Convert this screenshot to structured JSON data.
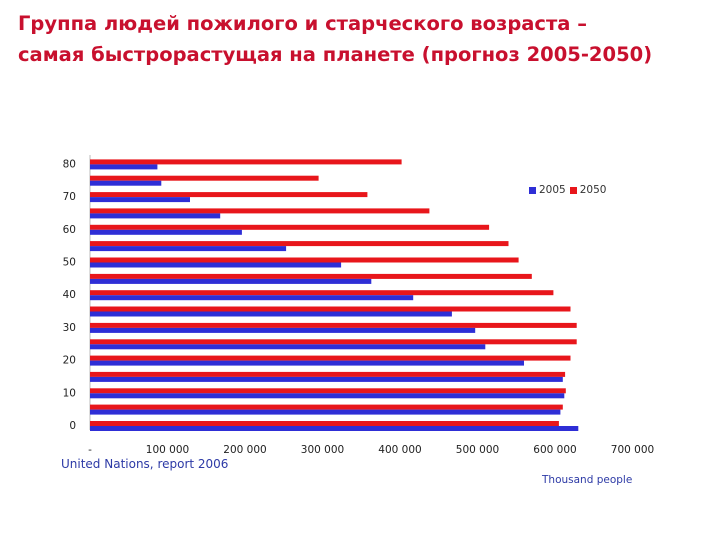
{
  "title_lines": [
    "Группа людей пожилого и старческого возраста –",
    "самая быстрорастущая на планете (прогноз 2005-2050)"
  ],
  "source": "United Nations, report 2006",
  "unit_label": "Thousand people",
  "colors": {
    "series_2005": "#2e2ed6",
    "series_2050": "#e8161b"
  },
  "chart_data": {
    "type": "bar",
    "orientation": "horizontal",
    "title": "Группа людей пожилого и старческого возраста – самая быстрорастущая на планете (прогноз 2005-2050)",
    "xlabel": "Thousand people",
    "ylabel": "",
    "xlim": [
      0,
      700000
    ],
    "ylim": [
      0,
      80
    ],
    "x_tick_labels": [
      "-",
      "100 000",
      "200 000",
      "300 000",
      "400 000",
      "500 000",
      "600 000",
      "700 000"
    ],
    "y_tick_labels": [
      "0",
      "10",
      "20",
      "30",
      "40",
      "50",
      "60",
      "70",
      "80"
    ],
    "legend_position": "top-right",
    "grid": false,
    "categories": [
      "0",
      "5",
      "10",
      "15",
      "20",
      "25",
      "30",
      "35",
      "40",
      "45",
      "50",
      "55",
      "60",
      "65",
      "70",
      "75",
      "80"
    ],
    "series": [
      {
        "name": "2005",
        "values": [
          630000,
          607000,
          612000,
          610000,
          560000,
          510000,
          497000,
          467000,
          417000,
          363000,
          324000,
          253000,
          196000,
          168000,
          129000,
          92000,
          87000
        ]
      },
      {
        "name": "2050",
        "values": [
          605000,
          610000,
          614000,
          613000,
          620000,
          628000,
          628000,
          620000,
          598000,
          570000,
          553000,
          540000,
          515000,
          438000,
          358000,
          295000,
          402000
        ]
      }
    ]
  }
}
